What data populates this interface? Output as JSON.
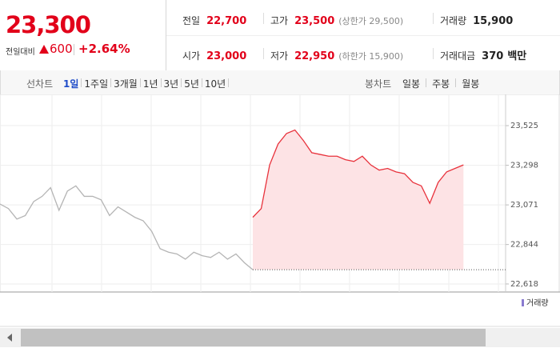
{
  "header": {
    "price": "23,300",
    "change_label": "전일대비",
    "change": "600",
    "rate": "+2.64%",
    "rows": [
      [
        {
          "label": "전일",
          "value": "22,700"
        },
        {
          "label": "고가",
          "value": "23,500",
          "note": "(상한가 29,500)"
        },
        {
          "label": "거래량",
          "value": "15,900"
        }
      ],
      [
        {
          "label": "시가",
          "value": "23,000"
        },
        {
          "label": "저가",
          "value": "22,950",
          "note": "(하한가 15,900)"
        },
        {
          "label": "거래대금",
          "value": "370",
          "unit": "백만"
        }
      ]
    ]
  },
  "tabs": {
    "line_label": "선차트",
    "periods": [
      "1일",
      "1주일",
      "3개월",
      "1년",
      "3년",
      "5년",
      "10년"
    ],
    "candle_label": "봉차트",
    "candles": [
      "일봉",
      "주봉",
      "월봉"
    ]
  },
  "chart_data": {
    "type": "line",
    "volume_label": "거래량",
    "ylim": [
      22572,
      23704
    ],
    "yticks": [
      {
        "value": 22618,
        "label": "22,618"
      },
      {
        "value": 22844,
        "label": "22,844"
      },
      {
        "value": 23071,
        "label": "23,071"
      },
      {
        "value": 23298,
        "label": "23,298"
      },
      {
        "value": 23525,
        "label": "23,525"
      }
    ],
    "baseline": 22700,
    "series": [
      {
        "color": "#b4b4b4",
        "values": [
          23076,
          23050,
          22990,
          23010,
          23090,
          23120,
          23170,
          23040,
          23150,
          23180,
          23120,
          23120,
          23100,
          23010,
          23060,
          23030,
          23000,
          22980,
          22920,
          22820,
          22800,
          22790,
          22760,
          22800,
          22780,
          22770,
          22800,
          22760,
          22790,
          22740,
          22700,
          null,
          null,
          null,
          null,
          null,
          null,
          null,
          null,
          null,
          null,
          null,
          null,
          null,
          null,
          null,
          null,
          null,
          null,
          null,
          null,
          null,
          null,
          null,
          null,
          null
        ]
      },
      {
        "color": "#e8323c",
        "fill": "#fde3e5",
        "values": [
          null,
          null,
          null,
          null,
          null,
          null,
          null,
          null,
          null,
          null,
          null,
          null,
          null,
          null,
          null,
          null,
          null,
          null,
          null,
          null,
          null,
          null,
          null,
          null,
          null,
          null,
          null,
          null,
          null,
          null,
          23000,
          23050,
          23300,
          23420,
          23480,
          23500,
          23440,
          23370,
          23360,
          23350,
          23350,
          23330,
          23320,
          23350,
          23300,
          23270,
          23280,
          23260,
          23250,
          23200,
          23180,
          23080,
          23200,
          23260,
          23280,
          23300
        ]
      }
    ]
  }
}
